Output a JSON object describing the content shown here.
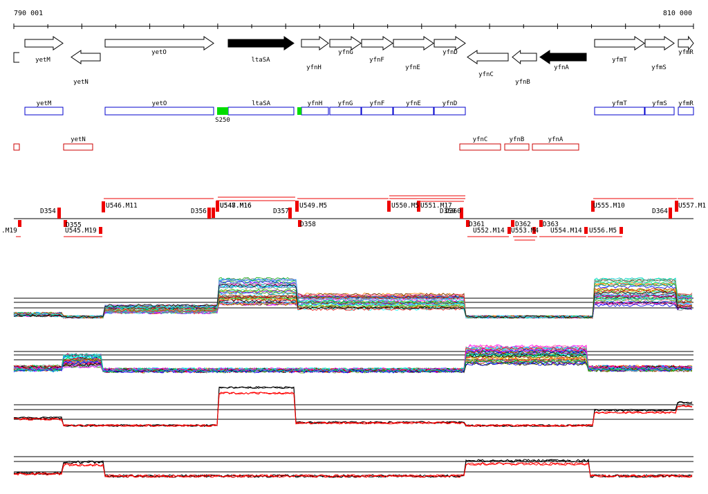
{
  "coords": {
    "start": "790 001",
    "end": "810 000"
  },
  "colors": {
    "forward_box": "#0000cc",
    "reverse_box": "#cc0000",
    "segment": "#ee0000",
    "highlight": "#00dd00",
    "essential": "#000000"
  },
  "genes": [
    {
      "name": "yetM",
      "strand": "+",
      "filled": false
    },
    {
      "name": "yetN",
      "strand": "-",
      "filled": false
    },
    {
      "name": "yetO",
      "strand": "+",
      "filled": false
    },
    {
      "name": "ltaSA",
      "strand": "+",
      "filled": true
    },
    {
      "name": "yfnH",
      "strand": "+",
      "filled": false
    },
    {
      "name": "yfnG",
      "strand": "+",
      "filled": false
    },
    {
      "name": "yfnF",
      "strand": "+",
      "filled": false
    },
    {
      "name": "yfnE",
      "strand": "+",
      "filled": false
    },
    {
      "name": "yfnD",
      "strand": "+",
      "filled": false
    },
    {
      "name": "yfnC",
      "strand": "-",
      "filled": false
    },
    {
      "name": "yfnB",
      "strand": "-",
      "filled": false
    },
    {
      "name": "yfnA",
      "strand": "-",
      "filled": true
    },
    {
      "name": "yfmT",
      "strand": "+",
      "filled": false
    },
    {
      "name": "yfmS",
      "strand": "+",
      "filled": false
    },
    {
      "name": "yfmR",
      "strand": "+",
      "filled": false
    }
  ],
  "forward_track": [
    "yetM",
    "yetO",
    "ltaSA",
    "yfnH",
    "yfnG",
    "yfnF",
    "yfnE",
    "yfnD",
    "yfmT",
    "yfmS",
    "yfmR"
  ],
  "reverse_track": [
    "yetN",
    "yfnC",
    "yfnB",
    "yfnA"
  ],
  "site_label": "S250",
  "upper_segments": [
    "U546.M11",
    "D354",
    "D356",
    "U547.M16",
    "U548.M16",
    "D357",
    "U549.M5",
    "U550.M5",
    "U551.M17",
    "D359",
    "D360",
    "U555.M10",
    "D364",
    "U557.M1"
  ],
  "lower_segments": [
    ".M19",
    "D355",
    "U545.M19",
    "D358",
    "D361",
    "U552.M14",
    "U553.M4",
    "D362",
    "D363",
    "U554.M14",
    "U556.M5"
  ]
}
